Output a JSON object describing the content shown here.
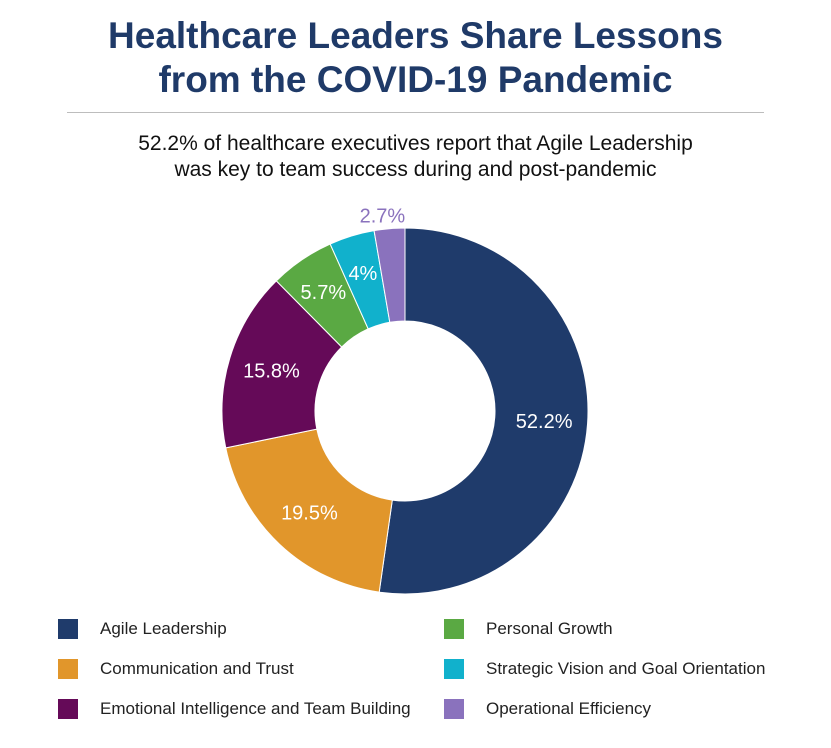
{
  "header": {
    "title_line1": "Healthcare Leaders Share Lessons",
    "title_line2": "from the COVID-19 Pandemic",
    "subtitle_line1": "52.2% of healthcare executives report that Agile Leadership",
    "subtitle_line2": "was key to team success during and post-pandemic"
  },
  "chart_data": {
    "type": "pie",
    "subtype": "donut",
    "title": "",
    "start_angle_deg": 0,
    "direction": "clockwise",
    "series": [
      {
        "name": "Agile Leadership",
        "value": 52.2,
        "label": "52.2%",
        "color": "#1f3b6b"
      },
      {
        "name": "Communication and Trust",
        "value": 19.5,
        "label": "19.5%",
        "color": "#e1962b"
      },
      {
        "name": "Emotional Intelligence and Team Building",
        "value": 15.8,
        "label": "15.8%",
        "color": "#650a58"
      },
      {
        "name": "Personal Growth",
        "value": 5.7,
        "label": "5.7%",
        "color": "#5aa943"
      },
      {
        "name": "Strategic Vision and Goal Orientation",
        "value": 4.0,
        "label": "4%",
        "color": "#11b1cc"
      },
      {
        "name": "Operational Efficiency",
        "value": 2.7,
        "label": "2.7%",
        "color": "#8a72bd"
      }
    ],
    "legend_position": "bottom",
    "legend_layout": "two columns, filled top to bottom then left to right"
  }
}
